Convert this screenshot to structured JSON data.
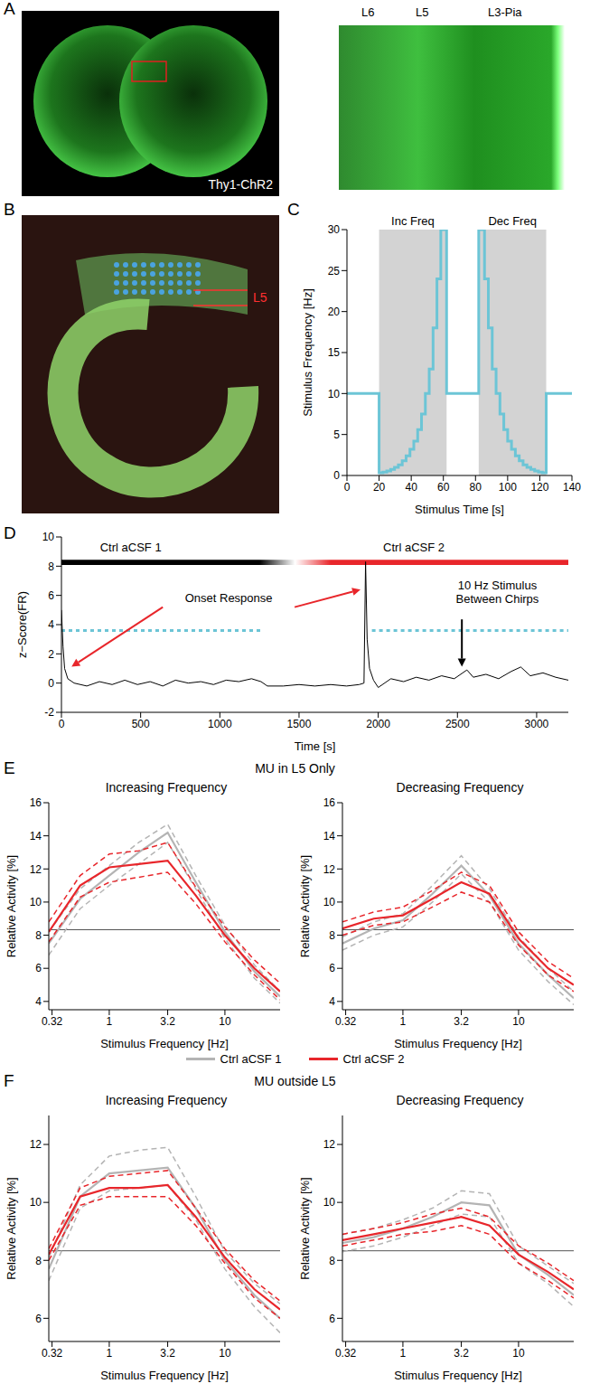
{
  "chart_data": [
    {
      "panel": "A",
      "type": "image",
      "labels": [
        "Thy1-ChR2"
      ],
      "inset_labels": [
        "L6",
        "L5",
        "L3-Pia"
      ]
    },
    {
      "panel": "B",
      "type": "image",
      "labels": [
        "L5"
      ]
    },
    {
      "panel": "C",
      "type": "line",
      "line_style": "step",
      "color": "#6cc5d6",
      "x_label": "Stimulus Time [s]",
      "y_label": "Stimulus Frequency [Hz]",
      "xlim": [
        0,
        140
      ],
      "ylim": [
        0,
        30
      ],
      "xticks": [
        0,
        20,
        40,
        60,
        80,
        100,
        120,
        140
      ],
      "yticks": [
        0,
        5,
        10,
        15,
        20,
        25,
        30
      ],
      "shaded": [
        {
          "label": "Inc Freq",
          "start": 20,
          "end": 62
        },
        {
          "label": "Dec Freq",
          "start": 82,
          "end": 124
        }
      ],
      "x": [
        0,
        20,
        22.4,
        24.8,
        27.2,
        29.6,
        32,
        34.4,
        36.8,
        39.2,
        41.6,
        44,
        46.4,
        48.8,
        51.2,
        53.6,
        56,
        58.4,
        62,
        82,
        85.6,
        88,
        90.4,
        92.8,
        95.2,
        97.6,
        100,
        102.4,
        104.8,
        107.2,
        109.6,
        112,
        114.4,
        116.8,
        119.2,
        121.6,
        124,
        140
      ],
      "values": [
        10,
        0.32,
        0.42,
        0.56,
        0.75,
        1,
        1.3,
        1.8,
        2.4,
        3.2,
        4.2,
        5.6,
        7.5,
        10,
        13,
        18,
        24,
        30,
        10,
        30,
        24,
        18,
        13,
        10,
        7.5,
        5.6,
        4.2,
        3.2,
        2.4,
        1.8,
        1.3,
        1,
        0.75,
        0.56,
        0.42,
        0.32,
        10,
        10
      ]
    },
    {
      "panel": "D",
      "type": "line",
      "color": "#000000",
      "x_label": "Time [s]",
      "y_label": "z−Score(FR)",
      "xlim": [
        0,
        3200
      ],
      "ylim": [
        -2,
        10
      ],
      "xticks": [
        0,
        500,
        1000,
        1500,
        2000,
        2500,
        3000
      ],
      "yticks": [
        -2,
        0,
        2,
        4,
        6,
        8,
        10
      ],
      "x": [
        0,
        10,
        20,
        40,
        80,
        160,
        240,
        320,
        400,
        480,
        560,
        640,
        720,
        800,
        880,
        960,
        1040,
        1120,
        1200,
        1260,
        1300,
        1400,
        1500,
        1600,
        1700,
        1800,
        1880,
        1910,
        1920,
        1930,
        1945,
        1970,
        2000,
        2080,
        2160,
        2240,
        2320,
        2400,
        2480,
        2560,
        2600,
        2680,
        2760,
        2840,
        2900,
        2960,
        3040,
        3120,
        3200
      ],
      "values": [
        5,
        2.5,
        1,
        0.3,
        0,
        -0.2,
        0.1,
        -0.1,
        0.2,
        -0.1,
        0.1,
        -0.2,
        0.2,
        0,
        0.1,
        -0.1,
        0.2,
        0.1,
        0.3,
        0.1,
        -0.2,
        -0.2,
        -0.1,
        -0.2,
        -0.1,
        -0.2,
        -0.1,
        0,
        8.3,
        3,
        1,
        0.2,
        -0.3,
        0.3,
        0.1,
        0.4,
        0.2,
        0.5,
        0.3,
        0.9,
        0.4,
        0.6,
        0.3,
        0.8,
        1.1,
        0.5,
        0.7,
        0.4,
        0.2
      ],
      "conditions": [
        {
          "label": "Ctrl aCSF 1",
          "start": 0,
          "end": 1250,
          "color": "#000000"
        },
        {
          "label": "Ctrl aCSF 2",
          "start": 1700,
          "end": 3200,
          "color": "#e8262b"
        }
      ],
      "stimulus": {
        "level": 3.6,
        "segments": [
          [
            0,
            1270
          ],
          [
            1960,
            3200
          ]
        ],
        "color": "#6cc5d6",
        "line_style": "dotted"
      },
      "annotations": [
        "Onset Response",
        "10 Hz Stimulus Between Chirps"
      ]
    },
    {
      "panel": "E",
      "title": "MU in L5 Only",
      "legend": "bottom",
      "charts": [
        {
          "type": "line",
          "title": "Increasing Frequency",
          "log": "x",
          "x_label": "Stimulus Frequency [Hz]",
          "y_label": "Relative Activity [%]",
          "xlim": [
            0.3,
            30
          ],
          "xticks": [
            0.32,
            1,
            3.2,
            10
          ],
          "ylim": [
            3.5,
            16
          ],
          "yticks": [
            4,
            6,
            8,
            10,
            12,
            14,
            16
          ],
          "reference_line": 8.33,
          "x": [
            0.3,
            0.56,
            1,
            1.8,
            3.2,
            5.6,
            10,
            18,
            30
          ],
          "series": [
            {
              "name": "Ctrl aCSF 1",
              "color": "#b4b4b4",
              "values": [
                7.5,
                10.2,
                11.6,
                13,
                14.2,
                11.2,
                8.2,
                5.8,
                4.3
              ],
              "lower": [
                6.8,
                9.6,
                11,
                12.3,
                13.6,
                10.8,
                7.8,
                5.4,
                3.9
              ],
              "upper": [
                8.2,
                10.8,
                12.2,
                13.6,
                14.7,
                11.6,
                8.6,
                6.2,
                4.6
              ]
            },
            {
              "name": "Ctrl aCSF 2",
              "color": "#e8262b",
              "values": [
                8.2,
                11,
                12.1,
                12.3,
                12.5,
                10.4,
                8,
                6,
                4.6
              ],
              "lower": [
                7.6,
                10.3,
                11.2,
                11.5,
                11.8,
                9.9,
                7.6,
                5.6,
                4.1
              ],
              "upper": [
                8.8,
                11.6,
                12.9,
                13.1,
                13.6,
                10.9,
                8.5,
                6.5,
                5.1
              ]
            }
          ]
        },
        {
          "type": "line",
          "title": "Decreasing Frequency",
          "log": "x",
          "x_label": "Stimulus Frequency [Hz]",
          "y_label": "Relative Activity [%]",
          "xlim": [
            0.3,
            30
          ],
          "xticks": [
            0.32,
            1,
            3.2,
            10
          ],
          "ylim": [
            3.5,
            16
          ],
          "yticks": [
            4,
            6,
            8,
            10,
            12,
            14,
            16
          ],
          "reference_line": 8.33,
          "x": [
            0.3,
            0.56,
            1,
            1.8,
            3.2,
            5.6,
            10,
            18,
            30
          ],
          "series": [
            {
              "name": "Ctrl aCSF 1",
              "color": "#b4b4b4",
              "values": [
                7.5,
                8.4,
                8.9,
                10.5,
                12.2,
                10.4,
                7.5,
                5.6,
                4.2
              ],
              "lower": [
                7.1,
                8,
                8.5,
                10,
                11.7,
                10,
                7.1,
                5.2,
                3.8
              ],
              "upper": [
                7.9,
                8.8,
                9.3,
                11,
                12.8,
                10.8,
                7.9,
                6,
                4.6
              ]
            },
            {
              "name": "Ctrl aCSF 2",
              "color": "#e8262b",
              "values": [
                8.4,
                9,
                9.2,
                10.2,
                11.2,
                10.5,
                7.8,
                6,
                5
              ],
              "lower": [
                8,
                8.6,
                8.8,
                9.7,
                10.6,
                10,
                7.4,
                5.6,
                4.6
              ],
              "upper": [
                8.8,
                9.4,
                9.7,
                10.7,
                11.8,
                11,
                8.2,
                6.4,
                5.4
              ]
            }
          ]
        }
      ]
    },
    {
      "panel": "F",
      "title": "MU outside L5",
      "charts": [
        {
          "type": "line",
          "title": "Increasing Frequency",
          "log": "x",
          "x_label": "Stimulus Frequency [Hz]",
          "y_label": "Relative Activity [%]",
          "xlim": [
            0.3,
            30
          ],
          "xticks": [
            0.32,
            1,
            3.2,
            10
          ],
          "ylim": [
            5.2,
            13
          ],
          "yticks": [
            6,
            8,
            10,
            12
          ],
          "reference_line": 8.33,
          "x": [
            0.3,
            0.56,
            1,
            1.8,
            3.2,
            5.6,
            10,
            18,
            30
          ],
          "series": [
            {
              "name": "Ctrl aCSF 1",
              "color": "#b4b4b4",
              "values": [
                7.7,
                10.2,
                11,
                11.1,
                11.2,
                9.8,
                8,
                6.8,
                6
              ],
              "lower": [
                7.3,
                9.8,
                10.4,
                10.5,
                10.6,
                9.4,
                7.7,
                6.4,
                5.5
              ],
              "upper": [
                8.1,
                10.6,
                11.6,
                11.8,
                11.9,
                10.2,
                8.3,
                7.2,
                6.5
              ]
            },
            {
              "name": "Ctrl aCSF 2",
              "color": "#e8262b",
              "values": [
                8.2,
                10.2,
                10.5,
                10.5,
                10.6,
                9.5,
                8.1,
                7,
                6.3
              ],
              "lower": [
                8,
                9.9,
                10.2,
                10.2,
                10.2,
                9.2,
                7.9,
                6.7,
                6
              ],
              "upper": [
                8.4,
                10.5,
                10.9,
                11,
                11.1,
                9.8,
                8.4,
                7.3,
                6.6
              ]
            }
          ]
        },
        {
          "type": "line",
          "title": "Decreasing Frequency",
          "log": "x",
          "x_label": "Stimulus Frequency [Hz]",
          "y_label": "Relative Activity [%]",
          "xlim": [
            0.3,
            30
          ],
          "xticks": [
            0.32,
            1,
            3.2,
            10
          ],
          "ylim": [
            5.2,
            13
          ],
          "yticks": [
            6,
            8,
            10,
            12
          ],
          "reference_line": 8.33,
          "x": [
            0.3,
            0.56,
            1,
            1.8,
            3.2,
            5.6,
            10,
            18,
            30
          ],
          "series": [
            {
              "name": "Ctrl aCSF 1",
              "color": "#b4b4b4",
              "values": [
                8.6,
                8.8,
                9.1,
                9.5,
                10,
                9.9,
                8.2,
                7.5,
                6.8
              ],
              "lower": [
                8.3,
                8.5,
                8.8,
                9.2,
                9.6,
                9.5,
                7.9,
                7.2,
                6.4
              ],
              "upper": [
                8.9,
                9.1,
                9.4,
                9.8,
                10.4,
                10.3,
                8.5,
                7.8,
                7.2
              ]
            },
            {
              "name": "Ctrl aCSF 2",
              "color": "#e8262b",
              "values": [
                8.7,
                8.9,
                9.1,
                9.3,
                9.5,
                9.2,
                8.2,
                7.6,
                7
              ],
              "lower": [
                8.5,
                8.7,
                8.9,
                9,
                9.2,
                8.9,
                7.9,
                7.3,
                6.7
              ],
              "upper": [
                8.9,
                9.1,
                9.3,
                9.6,
                9.8,
                9.5,
                8.5,
                7.9,
                7.3
              ]
            }
          ]
        }
      ]
    }
  ]
}
